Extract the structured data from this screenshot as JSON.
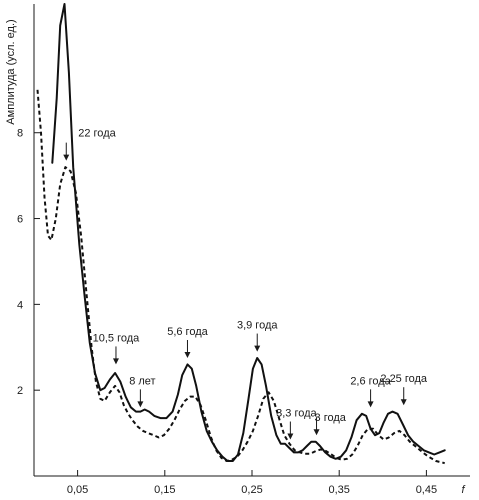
{
  "chart_data": {
    "type": "line",
    "ylabel": "Амплитуда (усл. ед.)",
    "xlabel": "f",
    "xlim": [
      0.0,
      0.5
    ],
    "ylim": [
      0,
      11
    ],
    "grid": false,
    "x_ticks": [
      {
        "value": 0.05,
        "label": "0,05"
      },
      {
        "value": 0.15,
        "label": "0,15"
      },
      {
        "value": 0.25,
        "label": "0,25"
      },
      {
        "value": 0.35,
        "label": "0,35"
      },
      {
        "value": 0.45,
        "label": "0,45"
      }
    ],
    "y_ticks": [
      {
        "value": 2,
        "label": "2"
      },
      {
        "value": 4,
        "label": "4"
      },
      {
        "value": 6,
        "label": "6"
      },
      {
        "value": 8,
        "label": "8"
      }
    ],
    "series": [
      {
        "style": "solid",
        "points": [
          [
            0.021,
            7.3
          ],
          [
            0.026,
            8.8
          ],
          [
            0.03,
            10.5
          ],
          [
            0.035,
            11.0
          ],
          [
            0.04,
            9.4
          ],
          [
            0.045,
            7.2
          ],
          [
            0.052,
            5.4
          ],
          [
            0.058,
            4.2
          ],
          [
            0.064,
            3.1
          ],
          [
            0.07,
            2.4
          ],
          [
            0.076,
            2.0
          ],
          [
            0.081,
            2.05
          ],
          [
            0.087,
            2.25
          ],
          [
            0.093,
            2.4
          ],
          [
            0.099,
            2.2
          ],
          [
            0.105,
            1.85
          ],
          [
            0.111,
            1.6
          ],
          [
            0.117,
            1.5
          ],
          [
            0.122,
            1.5
          ],
          [
            0.127,
            1.55
          ],
          [
            0.132,
            1.5
          ],
          [
            0.138,
            1.4
          ],
          [
            0.145,
            1.35
          ],
          [
            0.152,
            1.35
          ],
          [
            0.159,
            1.5
          ],
          [
            0.165,
            1.9
          ],
          [
            0.17,
            2.35
          ],
          [
            0.176,
            2.6
          ],
          [
            0.181,
            2.5
          ],
          [
            0.186,
            2.1
          ],
          [
            0.192,
            1.5
          ],
          [
            0.198,
            1.05
          ],
          [
            0.204,
            0.8
          ],
          [
            0.21,
            0.6
          ],
          [
            0.216,
            0.45
          ],
          [
            0.222,
            0.35
          ],
          [
            0.228,
            0.35
          ],
          [
            0.234,
            0.5
          ],
          [
            0.24,
            1.0
          ],
          [
            0.246,
            1.8
          ],
          [
            0.251,
            2.5
          ],
          [
            0.256,
            2.75
          ],
          [
            0.261,
            2.6
          ],
          [
            0.266,
            2.1
          ],
          [
            0.272,
            1.4
          ],
          [
            0.278,
            0.95
          ],
          [
            0.283,
            0.75
          ],
          [
            0.288,
            0.75
          ],
          [
            0.293,
            0.65
          ],
          [
            0.298,
            0.55
          ],
          [
            0.303,
            0.55
          ],
          [
            0.308,
            0.6
          ],
          [
            0.313,
            0.7
          ],
          [
            0.318,
            0.8
          ],
          [
            0.323,
            0.8
          ],
          [
            0.328,
            0.7
          ],
          [
            0.334,
            0.55
          ],
          [
            0.34,
            0.45
          ],
          [
            0.346,
            0.4
          ],
          [
            0.352,
            0.45
          ],
          [
            0.358,
            0.6
          ],
          [
            0.364,
            0.9
          ],
          [
            0.37,
            1.3
          ],
          [
            0.376,
            1.45
          ],
          [
            0.381,
            1.4
          ],
          [
            0.386,
            1.1
          ],
          [
            0.391,
            0.95
          ],
          [
            0.396,
            1.0
          ],
          [
            0.401,
            1.25
          ],
          [
            0.406,
            1.45
          ],
          [
            0.411,
            1.5
          ],
          [
            0.417,
            1.45
          ],
          [
            0.423,
            1.2
          ],
          [
            0.429,
            0.95
          ],
          [
            0.435,
            0.8
          ],
          [
            0.441,
            0.7
          ],
          [
            0.447,
            0.6
          ],
          [
            0.453,
            0.55
          ],
          [
            0.459,
            0.5
          ],
          [
            0.465,
            0.55
          ],
          [
            0.471,
            0.6
          ]
        ]
      },
      {
        "style": "dashed",
        "points": [
          [
            0.004,
            9.0
          ],
          [
            0.008,
            8.0
          ],
          [
            0.012,
            6.5
          ],
          [
            0.016,
            5.6
          ],
          [
            0.02,
            5.5
          ],
          [
            0.025,
            6.0
          ],
          [
            0.03,
            6.8
          ],
          [
            0.036,
            7.2
          ],
          [
            0.042,
            7.1
          ],
          [
            0.048,
            6.6
          ],
          [
            0.054,
            5.6
          ],
          [
            0.06,
            4.3
          ],
          [
            0.066,
            3.0
          ],
          [
            0.071,
            2.2
          ],
          [
            0.076,
            1.8
          ],
          [
            0.081,
            1.75
          ],
          [
            0.087,
            1.95
          ],
          [
            0.093,
            2.1
          ],
          [
            0.098,
            1.95
          ],
          [
            0.103,
            1.65
          ],
          [
            0.108,
            1.45
          ],
          [
            0.113,
            1.3
          ],
          [
            0.119,
            1.15
          ],
          [
            0.125,
            1.05
          ],
          [
            0.131,
            1.0
          ],
          [
            0.137,
            0.95
          ],
          [
            0.143,
            0.9
          ],
          [
            0.149,
            0.95
          ],
          [
            0.155,
            1.1
          ],
          [
            0.161,
            1.3
          ],
          [
            0.167,
            1.55
          ],
          [
            0.173,
            1.75
          ],
          [
            0.179,
            1.85
          ],
          [
            0.185,
            1.85
          ],
          [
            0.191,
            1.65
          ],
          [
            0.197,
            1.3
          ],
          [
            0.203,
            0.9
          ],
          [
            0.209,
            0.6
          ],
          [
            0.215,
            0.42
          ],
          [
            0.221,
            0.35
          ],
          [
            0.227,
            0.38
          ],
          [
            0.233,
            0.45
          ],
          [
            0.239,
            0.6
          ],
          [
            0.245,
            0.8
          ],
          [
            0.251,
            1.05
          ],
          [
            0.257,
            1.4
          ],
          [
            0.263,
            1.8
          ],
          [
            0.269,
            1.95
          ],
          [
            0.275,
            1.75
          ],
          [
            0.281,
            1.35
          ],
          [
            0.287,
            0.95
          ],
          [
            0.293,
            0.75
          ],
          [
            0.299,
            0.6
          ],
          [
            0.305,
            0.55
          ],
          [
            0.311,
            0.52
          ],
          [
            0.317,
            0.52
          ],
          [
            0.323,
            0.58
          ],
          [
            0.329,
            0.62
          ],
          [
            0.335,
            0.58
          ],
          [
            0.341,
            0.5
          ],
          [
            0.347,
            0.42
          ],
          [
            0.353,
            0.38
          ],
          [
            0.359,
            0.4
          ],
          [
            0.365,
            0.5
          ],
          [
            0.371,
            0.7
          ],
          [
            0.377,
            0.95
          ],
          [
            0.383,
            1.1
          ],
          [
            0.389,
            1.1
          ],
          [
            0.395,
            0.95
          ],
          [
            0.401,
            0.85
          ],
          [
            0.407,
            0.9
          ],
          [
            0.413,
            1.0
          ],
          [
            0.419,
            1.05
          ],
          [
            0.425,
            0.95
          ],
          [
            0.431,
            0.8
          ],
          [
            0.437,
            0.7
          ],
          [
            0.443,
            0.6
          ],
          [
            0.449,
            0.5
          ],
          [
            0.455,
            0.42
          ],
          [
            0.461,
            0.35
          ],
          [
            0.467,
            0.32
          ],
          [
            0.471,
            0.3
          ]
        ]
      }
    ],
    "annotations": [
      {
        "label": "22 года",
        "x": 0.037,
        "y": 7.35
      },
      {
        "label": "10,5 года",
        "x": 0.094,
        "y": 2.6
      },
      {
        "label": "8 лет",
        "x": 0.122,
        "y": 1.6
      },
      {
        "label": "5,6 года",
        "x": 0.176,
        "y": 2.75
      },
      {
        "label": "3,9 года",
        "x": 0.256,
        "y": 2.9
      },
      {
        "label": "3,3 года",
        "x": 0.294,
        "y": 0.85
      },
      {
        "label": "3 года",
        "x": 0.324,
        "y": 0.95
      },
      {
        "label": "2,6 года",
        "x": 0.386,
        "y": 1.6
      },
      {
        "label": "2,25 года",
        "x": 0.424,
        "y": 1.65
      }
    ]
  }
}
